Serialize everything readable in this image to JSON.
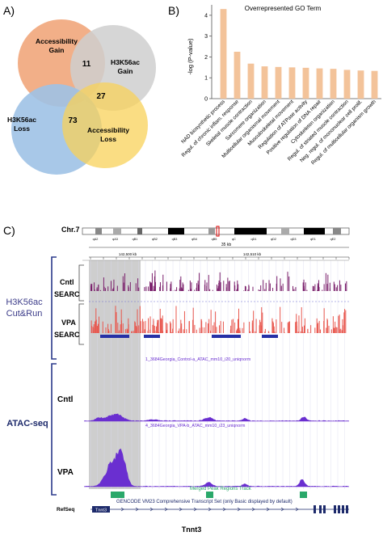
{
  "panel_a": {
    "label": "A)",
    "gain_label": [
      "Accessibility",
      "Gain"
    ],
    "h3k_gain_label": [
      "H3K56ac",
      "Gain"
    ],
    "h3k_loss_label": [
      "H3K56ac",
      "Loss"
    ],
    "loss_label": [
      "Accessibility",
      "Loss"
    ],
    "n_gain_overlap": "11",
    "n_loss_overlap": "27",
    "n_h3k_loss_overlap": "73",
    "colors": {
      "gain": "#f1a87e",
      "h3k_gain": "#cfcfcf",
      "h3k_loss": "#9fc2e6",
      "loss": "#f8d25a"
    }
  },
  "panel_b": {
    "label": "B)"
  },
  "chart_data": {
    "type": "bar",
    "title": "Overrepresented GO Term",
    "ylabel": "-log (P-value)",
    "xlabel": "",
    "ylim": [
      0,
      4.5
    ],
    "yticks": [
      0,
      1,
      2,
      3,
      4
    ],
    "categories": [
      "NAD biosynthetic process",
      "Regul. of chronic inflam. response",
      "Skeletal muscle contraction",
      "Sarcomere organization",
      "Multicellular organismal movement",
      "Musculoskeletal movement",
      "Regulation of ATPase activity",
      "Positive regulation of DNA repair",
      "Cytoskeleton organization",
      "Regul. of striated muscle contraction",
      "Neg. regul. of mononuclear cell prolif.",
      "Regul. of multicellular organism growth"
    ],
    "values": [
      4.3,
      2.25,
      1.68,
      1.55,
      1.52,
      1.5,
      1.48,
      1.45,
      1.43,
      1.38,
      1.35,
      1.33
    ],
    "bar_color": "#f3c39a",
    "grid": false
  },
  "panel_c": {
    "label": "C)",
    "chrom": "Chr.7",
    "bands": [
      "qA2",
      "qA3",
      "qB1",
      "qB2",
      "qB3",
      "qB4",
      "qB5",
      "qC",
      "qD1",
      "qD2",
      "qD3",
      "qE1",
      "qE2"
    ],
    "scale": "35 kb",
    "coord_left": "142,500 kb",
    "coord_right": "142,510 kb",
    "group1_label": [
      "H3K56ac",
      "Cut&Run"
    ],
    "group2_label": "ATAC-seq",
    "cntl": "Cntl",
    "vpa": "VPA",
    "searc": "SEARC",
    "atac_track_1": "1_3684Georgia_Control-a_ATAC_mm10_i20_uniqnorm",
    "atac_track_2": "4_3684Georgia_VPA-b_ATAC_mm10_i23_uniqnorm",
    "merged_track": "Merged Peak Regions Track",
    "gencode": "GENCODE VM23 Comprehensive Transcript Set (only Basic displayed by default)",
    "refseq": "RefSeq",
    "gene_box": "Tnnt3",
    "gene": "Tnnt3",
    "colors": {
      "cutrun_cntl": "#7a1f6b",
      "cutrun_vpa": "#e8574e",
      "searc": "#2630a6",
      "atac": "#6a2fd0",
      "peak": "#2aa86a",
      "navy": "#1d2a6b"
    }
  }
}
